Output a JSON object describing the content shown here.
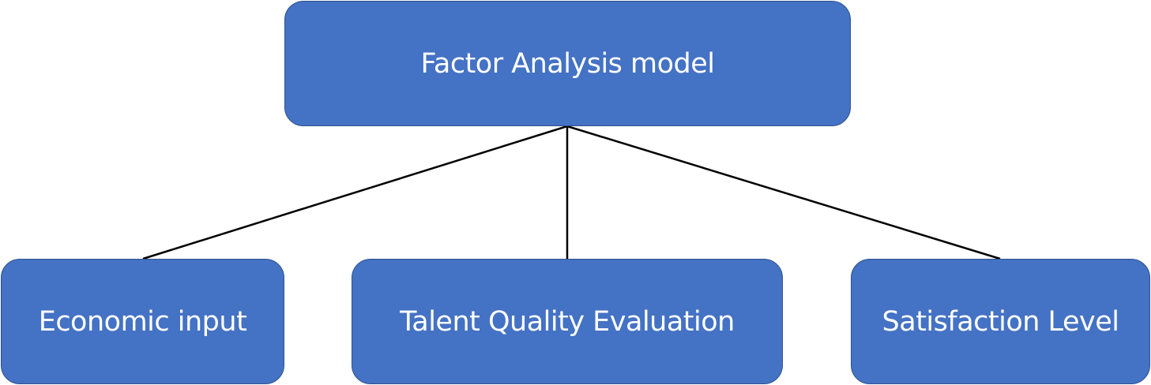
{
  "diagram": {
    "root": {
      "label": "Factor Analysis model"
    },
    "children": [
      {
        "label": "Economic input"
      },
      {
        "label": "Talent Quality Evaluation"
      },
      {
        "label": "Satisfaction Level"
      }
    ]
  },
  "colors": {
    "node_fill": "#4472c4",
    "node_border": "#2f528f",
    "node_text": "#ffffff",
    "connector": "#000000"
  }
}
